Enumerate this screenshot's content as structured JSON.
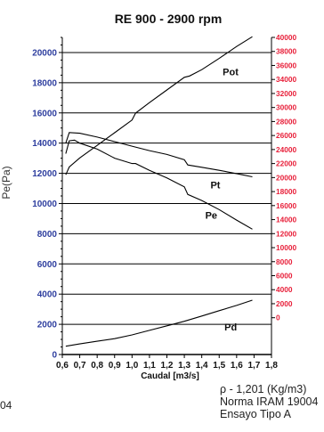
{
  "chart_data": {
    "type": "line",
    "title": "RE 900 - 2900 rpm",
    "xlabel": "Caudal  [m3/s]",
    "ylabel": "Pe(Pa)",
    "xlim": [
      0.6,
      1.8
    ],
    "ylim": [
      0,
      21000
    ],
    "y2lim": [
      -5250,
      40000
    ],
    "x_ticks": [
      0.6,
      0.7,
      0.8,
      0.9,
      1.0,
      1.1,
      1.2,
      1.3,
      1.4,
      1.5,
      1.6,
      1.7,
      1.8
    ],
    "x_tick_labels": [
      "0,6",
      "0,7",
      "0,8",
      "0,9",
      "1,0",
      "1,1",
      "1,2",
      "1,3",
      "1,4",
      "1,5",
      "1,6",
      "1,7",
      "1,8"
    ],
    "y_ticks": [
      0,
      2000,
      4000,
      6000,
      8000,
      10000,
      12000,
      14000,
      16000,
      18000,
      20000
    ],
    "y_tick_labels": [
      "0",
      "2000",
      "4000",
      "6000",
      "8000",
      "10000",
      "12000",
      "14000",
      "16000",
      "18000",
      "20000"
    ],
    "y2_ticks": [
      0,
      2000,
      4000,
      6000,
      8000,
      10000,
      12000,
      14000,
      16000,
      18000,
      20000,
      22000,
      24000,
      26000,
      28000,
      30000,
      32000,
      34000,
      36000,
      38000,
      40000
    ],
    "y2_tick_labels": [
      "0",
      "2000",
      "4000",
      "6000",
      "8000",
      "10000",
      "12000",
      "14000",
      "16000",
      "18000",
      "20000",
      "22000",
      "24000",
      "26000",
      "28000",
      "30000",
      "32000",
      "34000",
      "36000",
      "38000",
      "40000"
    ],
    "grid": "horizontal",
    "series": [
      {
        "name": "Pot",
        "axis": "right",
        "x": [
          0.62,
          0.64,
          0.7,
          0.8,
          0.9,
          1.0,
          1.02,
          1.1,
          1.2,
          1.3,
          1.33,
          1.4,
          1.5,
          1.6,
          1.69
        ],
        "y": [
          20400,
          21500,
          22800,
          24600,
          26400,
          28200,
          29200,
          30700,
          32500,
          34300,
          34500,
          35400,
          37000,
          38700,
          40100
        ]
      },
      {
        "name": "Pt",
        "axis": "left",
        "x": [
          0.62,
          0.64,
          0.7,
          0.8,
          0.9,
          1.0,
          1.1,
          1.2,
          1.3,
          1.32,
          1.4,
          1.5,
          1.6,
          1.69
        ],
        "y": [
          14000,
          14700,
          14650,
          14400,
          14100,
          13800,
          13500,
          13250,
          12900,
          12550,
          12400,
          12200,
          11980,
          11770
        ]
      },
      {
        "name": "Pe",
        "axis": "left",
        "x": [
          0.62,
          0.64,
          0.67,
          0.7,
          0.8,
          0.9,
          1.0,
          1.02,
          1.1,
          1.2,
          1.3,
          1.32,
          1.4,
          1.5,
          1.6,
          1.69
        ],
        "y": [
          13300,
          14150,
          14200,
          14000,
          13600,
          13000,
          12650,
          12650,
          12200,
          11700,
          11100,
          10600,
          10200,
          9600,
          8900,
          8300
        ]
      },
      {
        "name": "Pd",
        "axis": "left",
        "x": [
          0.62,
          0.7,
          0.8,
          0.9,
          1.0,
          1.1,
          1.2,
          1.3,
          1.4,
          1.5,
          1.6,
          1.69
        ],
        "y": [
          550,
          700,
          880,
          1050,
          1300,
          1600,
          1900,
          2200,
          2550,
          2900,
          3250,
          3600
        ]
      }
    ],
    "series_labels": [
      "Pot",
      "Pt",
      "Pe",
      "Pd"
    ],
    "colors": {
      "left_axis": "#2f3f9f",
      "right_axis": "#e8203a",
      "lines": "#000000"
    }
  },
  "notes": {
    "density": "ρ - 1,201 (Kg/m3)",
    "norm": "Norma IRAM 19004",
    "test": "Ensayo Tipo A"
  },
  "edge_text": "04"
}
